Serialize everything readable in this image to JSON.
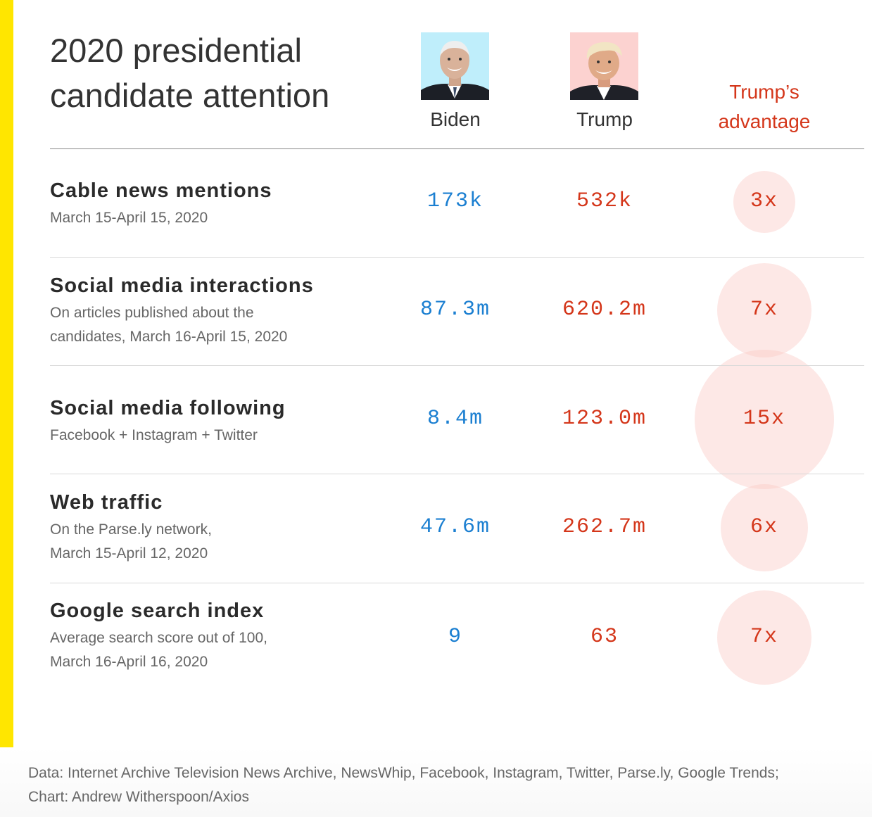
{
  "title_line1": "2020 presidential",
  "title_line2": "candidate attention",
  "columns": {
    "biden": "Biden",
    "trump": "Trump",
    "advantage_line1": "Trump’s",
    "advantage_line2": "advantage"
  },
  "rows": [
    {
      "label": "Cable news mentions",
      "sub1": "March 15-April 15, 2020",
      "sub2": "",
      "biden": "173k",
      "trump": "532k",
      "advantage": "3x"
    },
    {
      "label": "Social media interactions",
      "sub1": "On articles published about the",
      "sub2": "candidates, March 16-April 15, 2020",
      "biden": "87.3m",
      "trump": "620.2m",
      "advantage": "7x"
    },
    {
      "label": "Social media following",
      "sub1": "Facebook + Instagram + Twitter",
      "sub2": "",
      "biden": "8.4m",
      "trump": "123.0m",
      "advantage": "15x"
    },
    {
      "label": "Web traffic",
      "sub1": "On the Parse.ly network,",
      "sub2": "March 15-April 12, 2020",
      "biden": "47.6m",
      "trump": "262.7m",
      "advantage": "6x"
    },
    {
      "label": "Google search index",
      "sub1": "Average search score out of 100,",
      "sub2": "March 16-April 16, 2020",
      "biden": "9",
      "trump": "63",
      "advantage": "7x"
    }
  ],
  "source_line1": "Data: Internet Archive Television News Archive, NewsWhip, Facebook, Instagram, Twitter, Parse.ly, Google Trends;",
  "source_line2": "Chart: Andrew Witherspoon/Axios",
  "colors": {
    "biden": "#1b7fd1",
    "trump": "#d4361a",
    "accent": "#ffe600",
    "bubble": "#fac8c3"
  },
  "chart_data": {
    "type": "table",
    "title": "2020 presidential candidate attention",
    "columns": [
      "Biden",
      "Trump",
      "Trump’s advantage"
    ],
    "metrics": [
      "Cable news mentions",
      "Social media interactions",
      "Social media following",
      "Web traffic",
      "Google search index"
    ],
    "series": [
      {
        "name": "Biden",
        "values": [
          "173k",
          "87.3m",
          "8.4m",
          "47.6m",
          "9"
        ]
      },
      {
        "name": "Trump",
        "values": [
          "532k",
          "620.2m",
          "123.0m",
          "262.7m",
          "63"
        ]
      },
      {
        "name": "Trump’s advantage",
        "values": [
          3,
          7,
          15,
          6,
          7
        ]
      }
    ]
  }
}
